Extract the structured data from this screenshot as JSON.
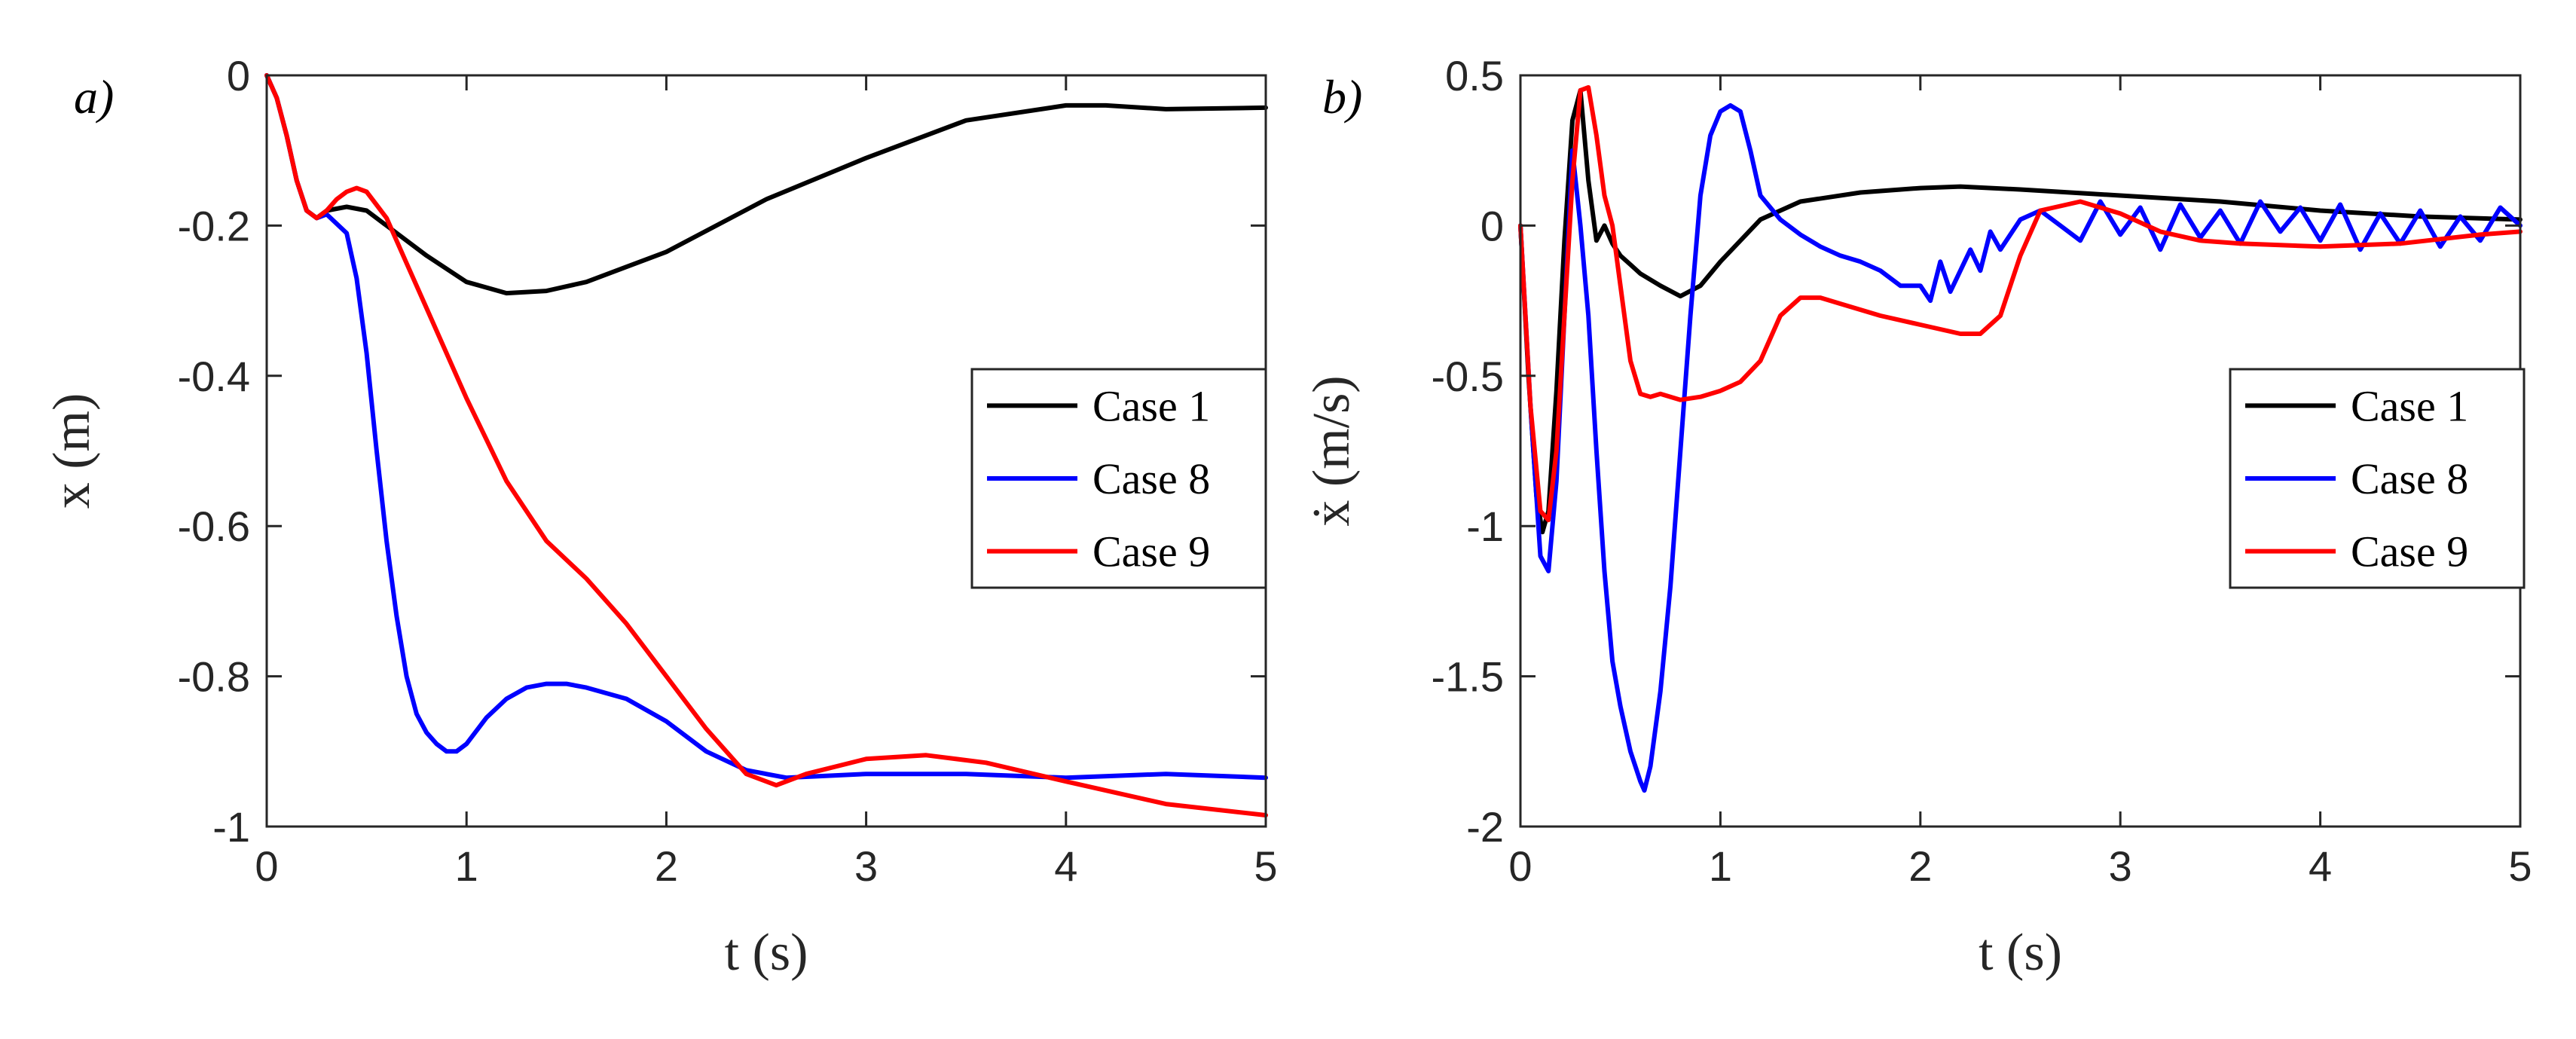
{
  "chart_data": [
    {
      "type": "line",
      "panel_label": "a)",
      "title": "",
      "xlabel": "t (s)",
      "ylabel": "x (m)",
      "xlim": [
        0,
        5
      ],
      "ylim": [
        -1,
        0
      ],
      "xticks": [
        0,
        1,
        2,
        3,
        4,
        5
      ],
      "xtick_labels": [
        "0",
        "1",
        "2",
        "3",
        "4",
        "5"
      ],
      "yticks": [
        -1,
        -0.8,
        -0.6,
        -0.4,
        -0.2,
        0
      ],
      "ytick_labels": [
        "-1",
        "-0.8",
        "-0.6",
        "-0.4",
        "-0.2",
        "0"
      ],
      "legend_position": "center-right",
      "grid": false,
      "series": [
        {
          "name": "Case 1",
          "color": "#000000",
          "x": [
            0,
            0.05,
            0.1,
            0.15,
            0.2,
            0.25,
            0.3,
            0.4,
            0.5,
            0.6,
            0.8,
            1.0,
            1.2,
            1.4,
            1.6,
            1.8,
            2.0,
            2.5,
            3.0,
            3.5,
            4.0,
            4.2,
            4.5,
            5.0
          ],
          "y": [
            0,
            -0.03,
            -0.08,
            -0.14,
            -0.18,
            -0.19,
            -0.18,
            -0.175,
            -0.18,
            -0.2,
            -0.24,
            -0.275,
            -0.29,
            -0.287,
            -0.275,
            -0.255,
            -0.235,
            -0.165,
            -0.11,
            -0.06,
            -0.04,
            -0.04,
            -0.045,
            -0.043
          ]
        },
        {
          "name": "Case 8",
          "color": "#0000ff",
          "x": [
            0,
            0.05,
            0.1,
            0.15,
            0.2,
            0.25,
            0.3,
            0.4,
            0.45,
            0.5,
            0.55,
            0.6,
            0.65,
            0.7,
            0.75,
            0.8,
            0.85,
            0.9,
            0.95,
            1.0,
            1.1,
            1.2,
            1.3,
            1.4,
            1.5,
            1.6,
            1.8,
            2.0,
            2.2,
            2.4,
            2.6,
            3.0,
            3.5,
            4.0,
            4.5,
            5.0
          ],
          "y": [
            0,
            -0.03,
            -0.08,
            -0.14,
            -0.18,
            -0.19,
            -0.185,
            -0.21,
            -0.27,
            -0.37,
            -0.5,
            -0.62,
            -0.72,
            -0.8,
            -0.85,
            -0.875,
            -0.89,
            -0.9,
            -0.9,
            -0.89,
            -0.855,
            -0.83,
            -0.815,
            -0.81,
            -0.81,
            -0.815,
            -0.83,
            -0.86,
            -0.9,
            -0.925,
            -0.935,
            -0.93,
            -0.93,
            -0.935,
            -0.93,
            -0.935
          ]
        },
        {
          "name": "Case 9",
          "color": "#ff0000",
          "x": [
            0,
            0.05,
            0.1,
            0.15,
            0.2,
            0.25,
            0.3,
            0.35,
            0.4,
            0.45,
            0.5,
            0.6,
            0.7,
            0.8,
            1.0,
            1.2,
            1.4,
            1.6,
            1.8,
            2.0,
            2.2,
            2.4,
            2.55,
            2.7,
            3.0,
            3.3,
            3.6,
            4.0,
            4.5,
            5.0
          ],
          "y": [
            0,
            -0.03,
            -0.08,
            -0.14,
            -0.18,
            -0.19,
            -0.18,
            -0.165,
            -0.155,
            -0.15,
            -0.155,
            -0.19,
            -0.25,
            -0.31,
            -0.43,
            -0.54,
            -0.62,
            -0.67,
            -0.73,
            -0.8,
            -0.87,
            -0.93,
            -0.945,
            -0.93,
            -0.91,
            -0.905,
            -0.915,
            -0.94,
            -0.97,
            -0.985
          ]
        }
      ]
    },
    {
      "type": "line",
      "panel_label": "b)",
      "title": "",
      "xlabel": "t (s)",
      "ylabel": "ẋ (m/s)",
      "xlim": [
        0,
        5
      ],
      "ylim": [
        -2,
        0.5
      ],
      "xticks": [
        0,
        1,
        2,
        3,
        4,
        5
      ],
      "xtick_labels": [
        "0",
        "1",
        "2",
        "3",
        "4",
        "5"
      ],
      "yticks": [
        -2,
        -1.5,
        -1,
        -0.5,
        0,
        0.5
      ],
      "ytick_labels": [
        "-2",
        "-1.5",
        "-1",
        "-0.5",
        "0",
        "0.5"
      ],
      "legend_position": "center-right",
      "grid": false,
      "series": [
        {
          "name": "Case 1",
          "color": "#000000",
          "x": [
            0,
            0.04,
            0.08,
            0.11,
            0.14,
            0.18,
            0.22,
            0.26,
            0.3,
            0.34,
            0.38,
            0.42,
            0.46,
            0.5,
            0.55,
            0.6,
            0.7,
            0.8,
            0.9,
            1.0,
            1.2,
            1.4,
            1.7,
            2.0,
            2.2,
            2.5,
            3.0,
            3.5,
            4.0,
            4.5,
            5.0
          ],
          "y": [
            0,
            -0.5,
            -0.9,
            -1.02,
            -0.95,
            -0.55,
            -0.05,
            0.35,
            0.45,
            0.15,
            -0.05,
            0,
            -0.06,
            -0.1,
            -0.13,
            -0.16,
            -0.2,
            -0.235,
            -0.2,
            -0.12,
            0.02,
            0.08,
            0.11,
            0.125,
            0.13,
            0.12,
            0.1,
            0.08,
            0.05,
            0.03,
            0.02
          ]
        },
        {
          "name": "Case 8",
          "color": "#0000ff",
          "x": [
            0,
            0.05,
            0.1,
            0.14,
            0.18,
            0.22,
            0.26,
            0.3,
            0.34,
            0.38,
            0.42,
            0.46,
            0.5,
            0.55,
            0.6,
            0.62,
            0.65,
            0.7,
            0.75,
            0.8,
            0.85,
            0.9,
            0.95,
            1.0,
            1.05,
            1.1,
            1.15,
            1.2,
            1.3,
            1.4,
            1.5,
            1.6,
            1.7,
            1.8,
            1.9,
            2.0,
            2.05,
            2.1,
            2.15,
            2.2,
            2.25,
            2.3,
            2.35,
            2.4,
            2.5,
            2.6,
            2.7,
            2.8,
            2.9,
            3.0,
            3.1,
            3.2,
            3.3,
            3.4,
            3.5,
            3.6,
            3.7,
            3.8,
            3.9,
            4.0,
            4.1,
            4.2,
            4.3,
            4.4,
            4.5,
            4.6,
            4.7,
            4.8,
            4.9,
            5.0
          ],
          "y": [
            0,
            -0.6,
            -1.1,
            -1.15,
            -0.85,
            -0.3,
            0.25,
            0.0,
            -0.3,
            -0.75,
            -1.15,
            -1.45,
            -1.6,
            -1.75,
            -1.85,
            -1.88,
            -1.8,
            -1.55,
            -1.2,
            -0.75,
            -0.3,
            0.1,
            0.3,
            0.38,
            0.4,
            0.38,
            0.25,
            0.1,
            0.02,
            -0.03,
            -0.07,
            -0.1,
            -0.12,
            -0.15,
            -0.2,
            -0.2,
            -0.25,
            -0.12,
            -0.22,
            -0.15,
            -0.08,
            -0.15,
            -0.02,
            -0.08,
            0.02,
            0.05,
            0.0,
            -0.05,
            0.08,
            -0.03,
            0.06,
            -0.08,
            0.07,
            -0.04,
            0.05,
            -0.06,
            0.08,
            -0.02,
            0.06,
            -0.05,
            0.07,
            -0.08,
            0.04,
            -0.06,
            0.05,
            -0.07,
            0.03,
            -0.05,
            0.06,
            0.0
          ]
        },
        {
          "name": "Case 9",
          "color": "#ff0000",
          "x": [
            0,
            0.05,
            0.1,
            0.14,
            0.18,
            0.22,
            0.26,
            0.3,
            0.34,
            0.38,
            0.42,
            0.46,
            0.5,
            0.55,
            0.6,
            0.65,
            0.7,
            0.8,
            0.9,
            1.0,
            1.1,
            1.2,
            1.3,
            1.4,
            1.5,
            1.6,
            1.8,
            2.0,
            2.2,
            2.3,
            2.4,
            2.5,
            2.6,
            2.8,
            3.0,
            3.2,
            3.4,
            3.6,
            4.0,
            4.4,
            4.8,
            5.0
          ],
          "y": [
            0,
            -0.6,
            -0.95,
            -0.98,
            -0.75,
            -0.3,
            0.15,
            0.45,
            0.46,
            0.3,
            0.1,
            0.0,
            -0.2,
            -0.45,
            -0.56,
            -0.57,
            -0.56,
            -0.58,
            -0.57,
            -0.55,
            -0.52,
            -0.45,
            -0.3,
            -0.24,
            -0.24,
            -0.26,
            -0.3,
            -0.33,
            -0.36,
            -0.36,
            -0.3,
            -0.1,
            0.05,
            0.08,
            0.04,
            -0.02,
            -0.05,
            -0.06,
            -0.07,
            -0.06,
            -0.03,
            -0.02
          ]
        }
      ]
    }
  ]
}
